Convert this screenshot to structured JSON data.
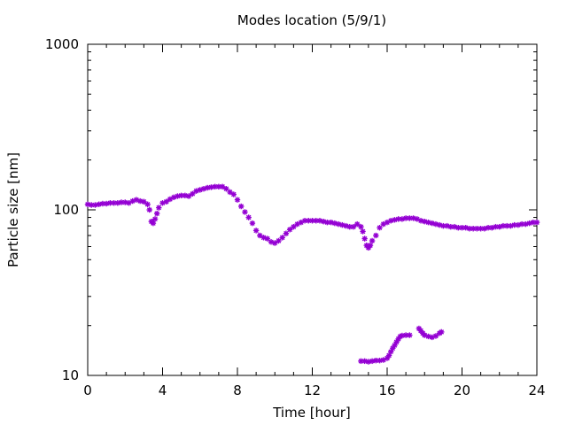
{
  "chart_data": {
    "type": "scatter",
    "title": "Modes location (5/9/1)",
    "xlabel": "Time [hour]",
    "ylabel": "Particle size [nm]",
    "xlim": [
      0,
      24
    ],
    "ylim": [
      10,
      1000
    ],
    "yscale": "log",
    "grid": false,
    "x_ticks": [
      0,
      4,
      8,
      12,
      16,
      20,
      24
    ],
    "x_tick_labels": [
      "0",
      "4",
      "8",
      "12",
      "16",
      "20",
      "24"
    ],
    "y_ticks": [
      10,
      100,
      1000
    ],
    "y_tick_labels": [
      "10",
      "100",
      "1000"
    ],
    "marker_color": "#9400d3",
    "marker": "asterisk",
    "series": [
      {
        "points": [
          [
            0.0,
            108
          ],
          [
            0.2,
            107
          ],
          [
            0.4,
            107
          ],
          [
            0.6,
            108
          ],
          [
            0.8,
            109
          ],
          [
            1.0,
            109
          ],
          [
            1.2,
            110
          ],
          [
            1.4,
            110
          ],
          [
            1.6,
            110
          ],
          [
            1.8,
            111
          ],
          [
            2.0,
            111
          ],
          [
            2.2,
            110
          ],
          [
            2.4,
            113
          ],
          [
            2.6,
            115
          ],
          [
            2.8,
            113
          ],
          [
            3.0,
            112
          ],
          [
            3.2,
            108
          ],
          [
            3.3,
            100
          ],
          [
            3.4,
            85
          ],
          [
            3.5,
            83
          ],
          [
            3.6,
            88
          ],
          [
            3.7,
            95
          ],
          [
            3.8,
            103
          ],
          [
            4.0,
            110
          ],
          [
            4.2,
            112
          ],
          [
            4.4,
            116
          ],
          [
            4.6,
            119
          ],
          [
            4.8,
            121
          ],
          [
            5.0,
            122
          ],
          [
            5.2,
            122
          ],
          [
            5.4,
            121
          ],
          [
            5.6,
            125
          ],
          [
            5.8,
            130
          ],
          [
            6.0,
            132
          ],
          [
            6.2,
            134
          ],
          [
            6.4,
            136
          ],
          [
            6.6,
            137
          ],
          [
            6.8,
            138
          ],
          [
            7.0,
            138
          ],
          [
            7.2,
            138
          ],
          [
            7.4,
            134
          ],
          [
            7.6,
            128
          ],
          [
            7.8,
            124
          ],
          [
            8.0,
            115
          ],
          [
            8.2,
            105
          ],
          [
            8.4,
            97
          ],
          [
            8.6,
            90
          ],
          [
            8.8,
            83
          ],
          [
            9.0,
            75
          ],
          [
            9.2,
            70
          ],
          [
            9.4,
            68
          ],
          [
            9.6,
            67
          ],
          [
            9.8,
            64
          ],
          [
            10.0,
            63
          ],
          [
            10.2,
            65
          ],
          [
            10.4,
            68
          ],
          [
            10.6,
            72
          ],
          [
            10.8,
            76
          ],
          [
            11.0,
            79
          ],
          [
            11.2,
            82
          ],
          [
            11.4,
            84
          ],
          [
            11.6,
            86
          ],
          [
            11.8,
            86
          ],
          [
            12.0,
            86
          ],
          [
            12.2,
            86
          ],
          [
            12.4,
            86
          ],
          [
            12.6,
            85
          ],
          [
            12.8,
            84
          ],
          [
            13.0,
            84
          ],
          [
            13.2,
            83
          ],
          [
            13.4,
            82
          ],
          [
            13.6,
            81
          ],
          [
            13.8,
            80
          ],
          [
            14.0,
            79
          ],
          [
            14.2,
            79
          ],
          [
            14.4,
            82
          ],
          [
            14.6,
            79
          ],
          [
            14.7,
            74
          ],
          [
            14.8,
            67
          ],
          [
            14.9,
            61
          ],
          [
            15.0,
            59
          ],
          [
            15.1,
            61
          ],
          [
            15.2,
            65
          ],
          [
            15.4,
            70
          ],
          [
            15.6,
            78
          ],
          [
            15.8,
            82
          ],
          [
            16.0,
            84
          ],
          [
            16.2,
            86
          ],
          [
            16.4,
            87
          ],
          [
            16.6,
            88
          ],
          [
            16.8,
            88
          ],
          [
            17.0,
            89
          ],
          [
            17.2,
            89
          ],
          [
            17.4,
            89
          ],
          [
            17.6,
            88
          ],
          [
            17.8,
            86
          ],
          [
            18.0,
            85
          ],
          [
            18.2,
            84
          ],
          [
            18.4,
            83
          ],
          [
            18.6,
            82
          ],
          [
            18.8,
            81
          ],
          [
            19.0,
            80
          ],
          [
            19.2,
            80
          ],
          [
            19.4,
            79
          ],
          [
            19.6,
            79
          ],
          [
            19.8,
            78
          ],
          [
            20.0,
            78
          ],
          [
            20.2,
            78
          ],
          [
            20.4,
            77
          ],
          [
            20.6,
            77
          ],
          [
            20.8,
            77
          ],
          [
            21.0,
            77
          ],
          [
            21.2,
            77
          ],
          [
            21.4,
            78
          ],
          [
            21.6,
            78
          ],
          [
            21.8,
            79
          ],
          [
            22.0,
            79
          ],
          [
            22.2,
            80
          ],
          [
            22.4,
            80
          ],
          [
            22.6,
            80
          ],
          [
            22.8,
            81
          ],
          [
            23.0,
            81
          ],
          [
            23.2,
            82
          ],
          [
            23.4,
            82
          ],
          [
            23.6,
            83
          ],
          [
            23.8,
            84
          ],
          [
            24.0,
            84
          ]
        ]
      },
      {
        "points": [
          [
            14.6,
            12.2
          ],
          [
            14.8,
            12.2
          ],
          [
            15.0,
            12.1
          ],
          [
            15.2,
            12.2
          ],
          [
            15.4,
            12.3
          ],
          [
            15.6,
            12.3
          ],
          [
            15.8,
            12.4
          ],
          [
            16.0,
            12.7
          ],
          [
            16.1,
            13.2
          ],
          [
            16.2,
            13.9
          ],
          [
            16.3,
            14.6
          ],
          [
            16.4,
            15.2
          ],
          [
            16.5,
            15.9
          ],
          [
            16.6,
            16.6
          ],
          [
            16.7,
            17.2
          ],
          [
            16.8,
            17.4
          ],
          [
            17.0,
            17.5
          ],
          [
            17.2,
            17.5
          ]
        ]
      },
      {
        "points": [
          [
            17.7,
            19.2
          ],
          [
            17.8,
            18.6
          ],
          [
            17.9,
            18.0
          ],
          [
            18.0,
            17.5
          ],
          [
            18.2,
            17.2
          ],
          [
            18.4,
            17.0
          ],
          [
            18.6,
            17.3
          ],
          [
            18.8,
            18.0
          ],
          [
            18.9,
            18.3
          ]
        ]
      }
    ]
  }
}
